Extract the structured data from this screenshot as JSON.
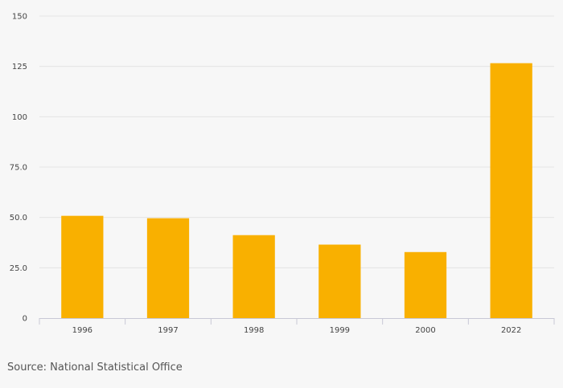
{
  "chart_data": {
    "type": "bar",
    "categories": [
      "1996",
      "1997",
      "1998",
      "1999",
      "2000",
      "2022"
    ],
    "values": [
      50.8,
      49.6,
      41.2,
      36.5,
      32.8,
      126.6
    ],
    "ylim": [
      0,
      150
    ],
    "yticks": [
      0,
      25,
      50,
      75,
      100,
      125,
      150
    ],
    "ytick_labels": [
      "0",
      "25.0",
      "50.0",
      "75.0",
      "100",
      "125",
      "150"
    ],
    "title": "",
    "xlabel": "",
    "ylabel": "",
    "grid": true,
    "bar_color": "#f9b000",
    "grid_color": "#e4e4e4",
    "axis_color": "#c8c8d6"
  },
  "footer": {
    "source": "Source: National Statistical Office"
  }
}
